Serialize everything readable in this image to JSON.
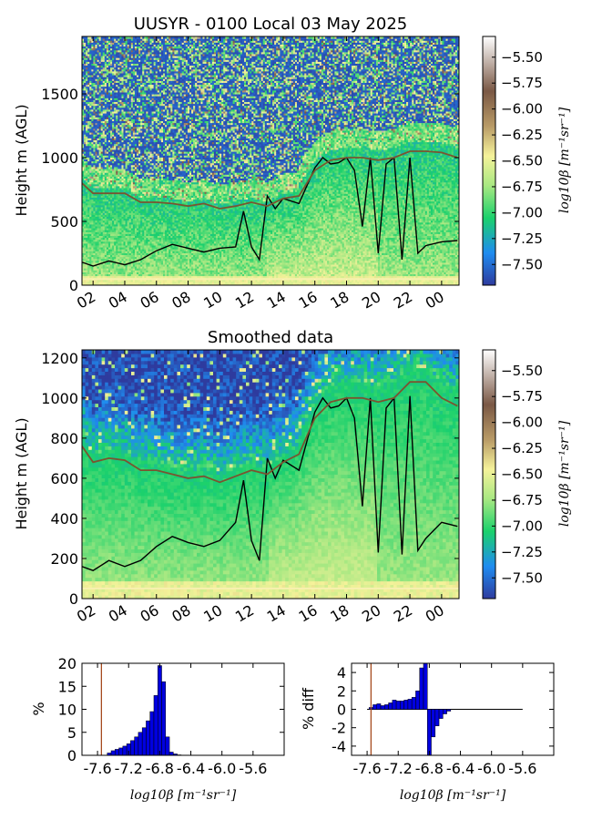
{
  "chart_data": [
    {
      "type": "heatmap",
      "title": "UUSYR - 0100 Local 03 May 2025",
      "ylabel": "Height m (AGL)",
      "xlabel": "",
      "xticks": [
        "02",
        "04",
        "06",
        "08",
        "10",
        "12",
        "14",
        "16",
        "18",
        "20",
        "22",
        "00"
      ],
      "yticks": [
        "0",
        "500",
        "1000",
        "1500"
      ],
      "ylim": [
        0,
        1950
      ],
      "colorbar": {
        "label": "log10β [m⁻¹sr⁻¹]",
        "ticks": [
          "-5.50",
          "-5.75",
          "-6.00",
          "-6.25",
          "-6.50",
          "-6.75",
          "-7.00",
          "-7.25",
          "-7.50"
        ],
        "range": [
          -7.7,
          -5.3
        ],
        "colors": [
          "#2e3b9e",
          "#1f8cf0",
          "#1bd16c",
          "#a8e882",
          "#f5f29a",
          "#b89a66",
          "#7a5845",
          "#ffffff"
        ]
      },
      "series": [
        {
          "name": "",
          "color": "#000000",
          "hours": [
            1.3,
            2,
            3,
            4,
            5,
            6,
            7,
            8,
            9,
            10,
            11,
            11.5,
            12,
            12.5,
            13,
            13.5,
            14,
            15,
            16,
            16.5,
            17,
            17.5,
            18,
            18.5,
            19,
            19.5,
            20,
            20.5,
            21,
            21.5,
            22,
            22.5,
            23,
            24,
            25
          ],
          "values": [
            180,
            150,
            190,
            160,
            200,
            270,
            320,
            290,
            260,
            290,
            300,
            580,
            300,
            200,
            700,
            600,
            680,
            640,
            920,
            1000,
            950,
            960,
            1000,
            900,
            460,
            1000,
            250,
            950,
            1000,
            200,
            1000,
            250,
            310,
            340,
            350
          ]
        },
        {
          "name": "",
          "color": "#7a5530",
          "hours": [
            1.3,
            2,
            3,
            4,
            5,
            6,
            7,
            8,
            9,
            10,
            11,
            12,
            13,
            14,
            15,
            16,
            17,
            18,
            19,
            20,
            21,
            22,
            23,
            24,
            25
          ],
          "values": [
            800,
            720,
            720,
            720,
            650,
            650,
            640,
            620,
            640,
            600,
            620,
            650,
            620,
            680,
            700,
            900,
            980,
            1000,
            1000,
            980,
            1000,
            1050,
            1050,
            1040,
            1000
          ]
        }
      ]
    },
    {
      "type": "heatmap",
      "title": "Smoothed data",
      "ylabel": "Height m (AGL)",
      "xlabel": "",
      "xticks": [
        "02",
        "04",
        "06",
        "08",
        "10",
        "12",
        "14",
        "16",
        "18",
        "20",
        "22",
        "00"
      ],
      "yticks": [
        "0",
        "200",
        "400",
        "600",
        "800",
        "1000",
        "1200"
      ],
      "ylim": [
        0,
        1240
      ],
      "colorbar": {
        "label": "log10β [m⁻¹sr⁻¹]",
        "ticks": [
          "-5.50",
          "-5.75",
          "-6.00",
          "-6.25",
          "-6.50",
          "-6.75",
          "-7.00",
          "-7.25",
          "-7.50"
        ],
        "range": [
          -7.7,
          -5.3
        ],
        "colors": [
          "#2e3b9e",
          "#1f8cf0",
          "#1bd16c",
          "#a8e882",
          "#f5f29a",
          "#b89a66",
          "#7a5845",
          "#ffffff"
        ]
      },
      "series": [
        {
          "name": "",
          "color": "#000000",
          "hours": [
            1.3,
            2,
            3,
            4,
            5,
            6,
            7,
            8,
            9,
            10,
            11,
            11.5,
            12,
            12.5,
            13,
            13.5,
            14,
            15,
            16,
            16.5,
            17,
            17.5,
            18,
            18.5,
            19,
            19.5,
            20,
            20.5,
            21,
            21.5,
            22,
            22.5,
            23,
            24,
            25
          ],
          "values": [
            160,
            140,
            190,
            160,
            190,
            260,
            310,
            280,
            260,
            290,
            380,
            590,
            290,
            190,
            700,
            600,
            690,
            640,
            930,
            1000,
            950,
            960,
            1000,
            900,
            460,
            1000,
            230,
            950,
            1000,
            220,
            1010,
            240,
            300,
            380,
            360
          ]
        },
        {
          "name": "",
          "color": "#7a5530",
          "hours": [
            1.3,
            2,
            3,
            4,
            5,
            6,
            7,
            8,
            9,
            10,
            11,
            12,
            13,
            14,
            15,
            16,
            17,
            18,
            19,
            20,
            21,
            22,
            23,
            24,
            25
          ],
          "values": [
            760,
            680,
            700,
            690,
            640,
            640,
            620,
            600,
            610,
            580,
            610,
            640,
            620,
            680,
            720,
            900,
            980,
            1000,
            1000,
            980,
            1000,
            1080,
            1080,
            1000,
            960
          ]
        }
      ]
    },
    {
      "type": "bar",
      "title": "",
      "xlabel": "log10β [m⁻¹sr⁻¹]",
      "ylabel": "%",
      "xticks": [
        "-7.6",
        "-7.2",
        "-6.8",
        "-6.4",
        "-6.0",
        "-5.6"
      ],
      "yticks": [
        "0",
        "5",
        "10",
        "15",
        "20"
      ],
      "xlim": [
        -7.8,
        -5.2
      ],
      "ylim": [
        0,
        20
      ],
      "bar_color": "#0000e0",
      "vline": {
        "x": -7.55,
        "color": "#a04010"
      },
      "x": [
        -7.45,
        -7.4,
        -7.35,
        -7.3,
        -7.25,
        -7.2,
        -7.15,
        -7.1,
        -7.05,
        -7.0,
        -6.95,
        -6.9,
        -6.85,
        -6.8,
        -6.75,
        -6.7,
        -6.65,
        -6.6,
        -6.55
      ],
      "values": [
        0.5,
        1.0,
        1.3,
        1.6,
        2.0,
        2.5,
        3.2,
        4.0,
        5.0,
        6.0,
        7.5,
        9.5,
        13.0,
        19.5,
        16.0,
        4.0,
        0.7,
        0.3,
        0.1
      ]
    },
    {
      "type": "bar",
      "title": "",
      "xlabel": "log10β [m⁻¹sr⁻¹]",
      "ylabel": "% diff",
      "xticks": [
        "-7.6",
        "-7.2",
        "-6.8",
        "-6.4",
        "-6.0",
        "-5.6"
      ],
      "yticks": [
        "-4",
        "-2",
        "0",
        "2",
        "4"
      ],
      "xlim": [
        -7.8,
        -5.2
      ],
      "ylim": [
        -5,
        5
      ],
      "bar_color": "#0000e0",
      "vline": {
        "x": -7.55,
        "color": "#a04010"
      },
      "baseline_range": [
        -7.6,
        -5.6
      ],
      "x": [
        -7.55,
        -7.5,
        -7.45,
        -7.4,
        -7.35,
        -7.3,
        -7.25,
        -7.2,
        -7.15,
        -7.1,
        -7.05,
        -7.0,
        -6.95,
        -6.9,
        -6.85,
        -6.8,
        -6.75,
        -6.7,
        -6.65,
        -6.6,
        -6.55
      ],
      "values": [
        0.2,
        0.5,
        0.6,
        0.4,
        0.5,
        0.7,
        1.0,
        0.9,
        0.9,
        1.0,
        1.1,
        1.3,
        2.0,
        4.5,
        5.0,
        -5.0,
        -3.0,
        -1.8,
        -1.0,
        -0.5,
        -0.2
      ]
    }
  ]
}
